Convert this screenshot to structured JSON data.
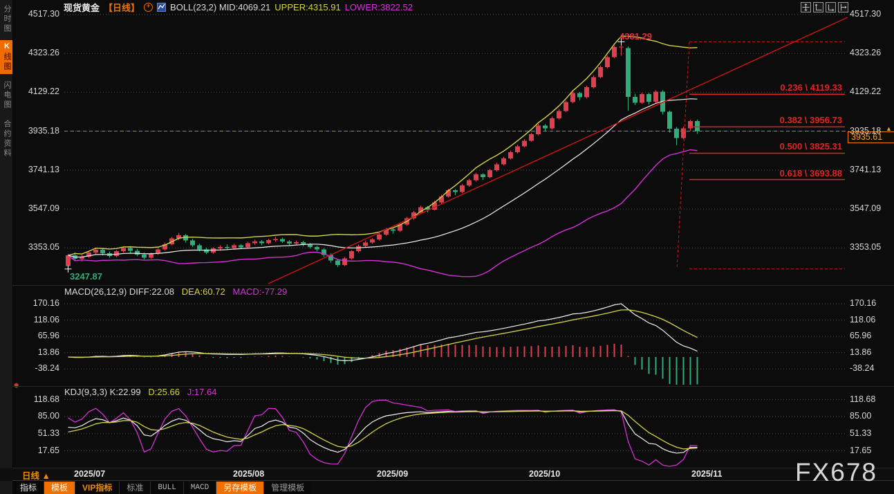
{
  "header": {
    "symbol": "现货黄金",
    "period_tag": "【日线】",
    "boll_label": "BOLL(23,2)",
    "mid_label": "MID:4069.21",
    "upper_label": "UPPER:4315.91",
    "lower_label": "LOWER:3822.52"
  },
  "sidebar": {
    "items": [
      {
        "label": "分时图",
        "active": false
      },
      {
        "label": "K线图",
        "active": true
      },
      {
        "label": "闪电图",
        "active": false
      },
      {
        "label": "合约资料",
        "active": false
      }
    ]
  },
  "annotations": {
    "high": "4381.29",
    "low": "3247.87",
    "last_price": "3935.61",
    "up_arrow": "▲"
  },
  "macd_row": {
    "label": "MACD(26,12,9) DIFF:22.08",
    "dea": "DEA:60.72",
    "macd": "MACD:-77.29"
  },
  "kdj_row": {
    "label": "KDJ(9,3,3) K:22.99",
    "d": "D:25.66",
    "j": "J:17.64"
  },
  "xaxis": {
    "period_label": "日线 ▲"
  },
  "bottom_tabs": [
    {
      "label": "指标",
      "style": "t-default"
    },
    {
      "label": "模板",
      "style": "t-active"
    },
    {
      "label": "VIP指标",
      "style": "t-orange"
    },
    {
      "label": "标准",
      "style": "t-dim"
    },
    {
      "label": "BULL",
      "style": "t-mono"
    },
    {
      "label": "MACD",
      "style": "t-mono"
    },
    {
      "label": "另存模板",
      "style": "t-active"
    },
    {
      "label": "管理模板",
      "style": "t-dim"
    }
  ],
  "watermark": "FX678",
  "colors": {
    "up": "#df404e",
    "down": "#2fae79",
    "boll_upper": "#d4d44a",
    "boll_mid": "#f2f2f2",
    "boll_lower": "#d82fd8",
    "trend_red": "#cc1515",
    "fib_red": "#e42222",
    "accent_orange": "#ef7000",
    "last_price_orange": "#c87818",
    "grid": "#4f4f4f",
    "axis_text": "#d8d8d8"
  },
  "chart_data": {
    "type": "candlestick",
    "title": "现货黄金 日线 (Spot Gold Daily)",
    "x_axis_months": [
      "2025/07",
      "2025/08",
      "2025/09",
      "2025/10",
      "2025/11"
    ],
    "price_axis": [
      4517.3,
      4323.26,
      4129.22,
      3935.18,
      3741.13,
      3547.09,
      3353.05
    ],
    "high_label": 4381.29,
    "low_label": 3247.87,
    "last_price": 3935.61,
    "boll": {
      "period": 23,
      "mult": 2,
      "mid": 4069.21,
      "upper": 4315.91,
      "lower": 3822.52
    },
    "macd": {
      "fast": 26,
      "slow": 12,
      "signal": 9,
      "diff": 22.08,
      "dea": 60.72,
      "hist": -77.29,
      "axis": [
        170.16,
        118.06,
        65.96,
        13.86,
        -38.24
      ]
    },
    "kdj": {
      "n": 9,
      "m1": 3,
      "m2": 3,
      "k": 22.99,
      "d": 25.66,
      "j": 17.64,
      "axis": [
        118.68,
        85.0,
        51.33,
        17.65
      ]
    },
    "fib_levels": [
      {
        "ratio": "0.236",
        "price": "4119.33"
      },
      {
        "ratio": "0.382",
        "price": "3956.73"
      },
      {
        "ratio": "0.500",
        "price": "3825.31"
      },
      {
        "ratio": "0.618",
        "price": "3693.88"
      }
    ],
    "ohlc": [
      [
        3262,
        3322,
        3247.87,
        3316
      ],
      [
        3316,
        3330,
        3288,
        3298
      ],
      [
        3298,
        3318,
        3285,
        3310
      ],
      [
        3310,
        3338,
        3302,
        3330
      ],
      [
        3330,
        3352,
        3322,
        3344
      ],
      [
        3344,
        3350,
        3316,
        3326
      ],
      [
        3326,
        3336,
        3304,
        3312
      ],
      [
        3312,
        3342,
        3306,
        3336
      ],
      [
        3336,
        3360,
        3330,
        3352
      ],
      [
        3352,
        3362,
        3328,
        3338
      ],
      [
        3338,
        3348,
        3312,
        3320
      ],
      [
        3320,
        3330,
        3296,
        3304
      ],
      [
        3304,
        3330,
        3298,
        3324
      ],
      [
        3324,
        3352,
        3318,
        3346
      ],
      [
        3346,
        3380,
        3340,
        3372
      ],
      [
        3372,
        3408,
        3366,
        3400
      ],
      [
        3400,
        3428,
        3392,
        3416
      ],
      [
        3416,
        3422,
        3380,
        3390
      ],
      [
        3390,
        3398,
        3358,
        3366
      ],
      [
        3366,
        3374,
        3336,
        3346
      ],
      [
        3346,
        3354,
        3322,
        3330
      ],
      [
        3330,
        3356,
        3324,
        3350
      ],
      [
        3350,
        3366,
        3340,
        3358
      ],
      [
        3358,
        3370,
        3344,
        3352
      ],
      [
        3352,
        3374,
        3346,
        3366
      ],
      [
        3366,
        3372,
        3348,
        3356
      ],
      [
        3356,
        3384,
        3350,
        3376
      ],
      [
        3376,
        3394,
        3368,
        3386
      ],
      [
        3386,
        3392,
        3366,
        3376
      ],
      [
        3376,
        3398,
        3370,
        3392
      ],
      [
        3392,
        3408,
        3384,
        3398
      ],
      [
        3398,
        3404,
        3378,
        3386
      ],
      [
        3386,
        3392,
        3364,
        3374
      ],
      [
        3374,
        3390,
        3366,
        3382
      ],
      [
        3382,
        3388,
        3360,
        3370
      ],
      [
        3370,
        3378,
        3350,
        3358
      ],
      [
        3358,
        3364,
        3336,
        3346
      ],
      [
        3346,
        3352,
        3308,
        3318
      ],
      [
        3318,
        3326,
        3280,
        3290
      ],
      [
        3290,
        3298,
        3258,
        3268
      ],
      [
        3268,
        3308,
        3262,
        3300
      ],
      [
        3300,
        3342,
        3294,
        3336
      ],
      [
        3336,
        3370,
        3330,
        3362
      ],
      [
        3362,
        3388,
        3356,
        3380
      ],
      [
        3380,
        3402,
        3374,
        3396
      ],
      [
        3396,
        3428,
        3390,
        3420
      ],
      [
        3420,
        3452,
        3414,
        3446
      ],
      [
        3446,
        3452,
        3424,
        3438
      ],
      [
        3438,
        3478,
        3432,
        3470
      ],
      [
        3470,
        3508,
        3464,
        3500
      ],
      [
        3500,
        3538,
        3494,
        3530
      ],
      [
        3530,
        3564,
        3524,
        3556
      ],
      [
        3556,
        3562,
        3530,
        3544
      ],
      [
        3544,
        3588,
        3540,
        3580
      ],
      [
        3580,
        3618,
        3574,
        3610
      ],
      [
        3610,
        3648,
        3604,
        3640
      ],
      [
        3640,
        3646,
        3616,
        3632
      ],
      [
        3632,
        3672,
        3626,
        3664
      ],
      [
        3664,
        3698,
        3658,
        3690
      ],
      [
        3690,
        3728,
        3684,
        3720
      ],
      [
        3720,
        3726,
        3692,
        3706
      ],
      [
        3706,
        3748,
        3700,
        3740
      ],
      [
        3740,
        3778,
        3734,
        3770
      ],
      [
        3770,
        3808,
        3764,
        3800
      ],
      [
        3800,
        3838,
        3794,
        3830
      ],
      [
        3830,
        3868,
        3824,
        3860
      ],
      [
        3860,
        3896,
        3854,
        3888
      ],
      [
        3888,
        3928,
        3882,
        3920
      ],
      [
        3920,
        3972,
        3914,
        3964
      ],
      [
        3964,
        3970,
        3936,
        3950
      ],
      [
        3950,
        4008,
        3944,
        4000
      ],
      [
        4000,
        4044,
        3994,
        4036
      ],
      [
        4036,
        4088,
        4030,
        4080
      ],
      [
        4080,
        4133,
        4074,
        4125
      ],
      [
        4125,
        4131,
        4090,
        4104
      ],
      [
        4104,
        4163,
        4098,
        4155
      ],
      [
        4155,
        4213,
        4149,
        4205
      ],
      [
        4205,
        4263,
        4199,
        4255
      ],
      [
        4255,
        4313,
        4249,
        4305
      ],
      [
        4305,
        4363,
        4299,
        4355
      ],
      [
        4355,
        4381.29,
        4312,
        4356
      ],
      [
        4350,
        4358,
        4038,
        4106
      ],
      [
        4106,
        4122,
        4066,
        4078
      ],
      [
        4078,
        4128,
        4072,
        4120
      ],
      [
        4120,
        4126,
        4068,
        4082
      ],
      [
        4082,
        4140,
        4076,
        4132
      ],
      [
        4132,
        4140,
        4018,
        4032
      ],
      [
        4032,
        4038,
        3928,
        3948
      ],
      [
        3948,
        3956,
        3866,
        3902
      ],
      [
        3902,
        3958,
        3896,
        3950
      ],
      [
        3950,
        3992,
        3936,
        3986
      ],
      [
        3986,
        3994,
        3922,
        3935.61
      ]
    ]
  }
}
